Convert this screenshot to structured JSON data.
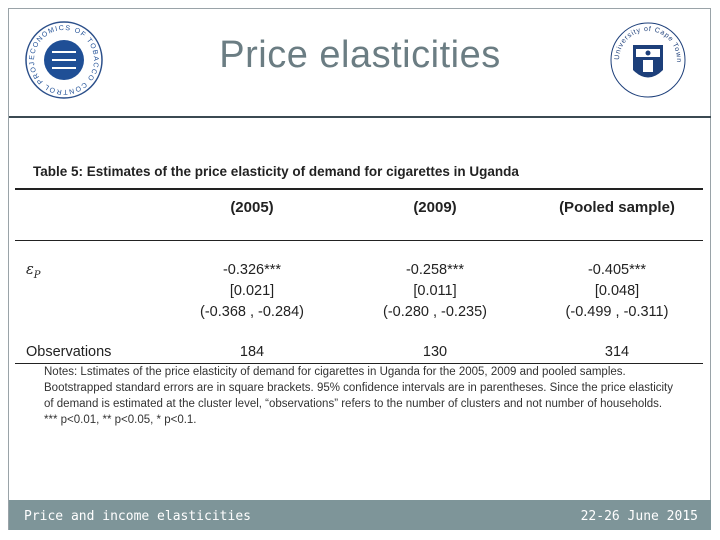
{
  "slide": {
    "title": "Price elasticities",
    "left_logo": {
      "icon": "economics-of-tobacco-control-project-logo",
      "text": "ECONOMICS OF TOBACCO CONTROL PROJECT"
    },
    "right_logo": {
      "icon": "university-of-cape-town-seal",
      "text": "University of Cape Town"
    }
  },
  "table": {
    "caption": "Table 5: Estimates of the price elasticity of demand for cigarettes in Uganda",
    "columns": [
      "(2005)",
      "(2009)",
      "(Pooled sample)"
    ],
    "epsilon_label": "ε",
    "epsilon_sub": "P",
    "estimates": [
      "-0.326***",
      "-0.258***",
      "-0.405***"
    ],
    "std_errors": [
      "[0.021]",
      "[0.011]",
      "[0.048]"
    ],
    "conf_intervals": [
      "(-0.368 , -0.284)",
      "(-0.280 , -0.235)",
      "(-0.499 , -0.311)"
    ],
    "observations_label": "Observations",
    "observations": [
      "184",
      "130",
      "314"
    ],
    "notes": [
      "Notes: Lstimates of the price elasticity of demand for cigarettes in Uganda for the 2005, 2009 and pooled samples.",
      "Bootstrapped standard errors are in square brackets. 95% confidence intervals are in parentheses. Since the price elasticity",
      "of demand is estimated at the cluster level, “observations” refers to the number of clusters and not number of households.",
      "*** p<0.01, ** p<0.05, * p<0.1."
    ]
  },
  "footer": {
    "left_text": "Price and income elasticities",
    "right_text": "22-26 June 2015",
    "color": "#7e9599"
  }
}
